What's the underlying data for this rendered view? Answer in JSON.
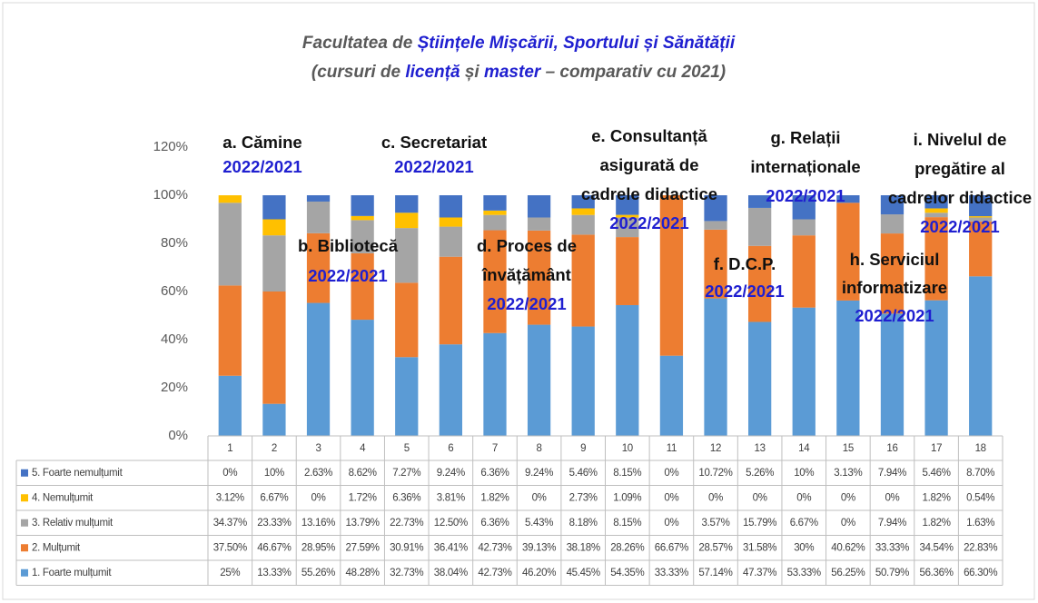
{
  "chart_data": {
    "type": "stacked_bar",
    "title_lines": [
      [
        {
          "text": "Facultatea de ",
          "color": "#595959"
        },
        {
          "text": "Științele Mișcării, Sportului și Sănătății",
          "color": "#1f1fd0"
        }
      ],
      [
        {
          "text": "(cursuri de ",
          "color": "#595959"
        },
        {
          "text": "licență",
          "color": "#1f1fd0"
        },
        {
          "text": " și ",
          "color": "#595959"
        },
        {
          "text": "master",
          "color": "#1f1fd0"
        },
        {
          "text": " – comparativ cu 2021)",
          "color": "#595959"
        }
      ]
    ],
    "categories": [
      "1",
      "2",
      "3",
      "4",
      "5",
      "6",
      "7",
      "8",
      "9",
      "10",
      "11",
      "12",
      "13",
      "14",
      "15",
      "16",
      "17",
      "18"
    ],
    "ylim": [
      0,
      120
    ],
    "yticks": [
      {
        "value": 0,
        "label": "0%"
      },
      {
        "value": 20,
        "label": "20%"
      },
      {
        "value": 40,
        "label": "40%"
      },
      {
        "value": 60,
        "label": "60%"
      },
      {
        "value": 80,
        "label": "80%"
      },
      {
        "value": 100,
        "label": "100%"
      },
      {
        "value": 120,
        "label": "120%"
      }
    ],
    "grid": false,
    "series": [
      {
        "name": "1. Foarte mulțumit",
        "color": "#5b9bd5",
        "values": [
          25,
          13.33,
          55.26,
          48.28,
          32.73,
          38.04,
          42.73,
          46.2,
          45.45,
          54.35,
          33.33,
          57.14,
          47.37,
          53.33,
          56.25,
          50.79,
          56.36,
          66.3
        ],
        "value_labels": [
          "25%",
          "13.33%",
          "55.26%",
          "48.28%",
          "32.73%",
          "38.04%",
          "42.73%",
          "46.20%",
          "45.45%",
          "54.35%",
          "33.33%",
          "57.14%",
          "47.37%",
          "53.33%",
          "56.25%",
          "50.79%",
          "56.36%",
          "66.30%"
        ]
      },
      {
        "name": "2. Mulțumit",
        "color": "#ed7d31",
        "values": [
          37.5,
          46.67,
          28.95,
          27.59,
          30.91,
          36.41,
          42.73,
          39.13,
          38.18,
          28.26,
          66.67,
          28.57,
          31.58,
          30,
          40.62,
          33.33,
          34.54,
          22.83
        ],
        "value_labels": [
          "37.50%",
          "46.67%",
          "28.95%",
          "27.59%",
          "30.91%",
          "36.41%",
          "42.73%",
          "39.13%",
          "38.18%",
          "28.26%",
          "66.67%",
          "28.57%",
          "31.58%",
          "30%",
          "40.62%",
          "33.33%",
          "34.54%",
          "22.83%"
        ]
      },
      {
        "name": "3. Relativ mulțumit",
        "color": "#a5a5a5",
        "values": [
          34.37,
          23.33,
          13.16,
          13.79,
          22.73,
          12.5,
          6.36,
          5.43,
          8.18,
          8.15,
          0,
          3.57,
          15.79,
          6.67,
          0,
          7.94,
          1.82,
          1.63
        ],
        "value_labels": [
          "34.37%",
          "23.33%",
          "13.16%",
          "13.79%",
          "22.73%",
          "12.50%",
          "6.36%",
          "5.43%",
          "8.18%",
          "8.15%",
          "0%",
          "3.57%",
          "15.79%",
          "6.67%",
          "0%",
          "7.94%",
          "1.82%",
          "1.63%"
        ]
      },
      {
        "name": "4. Nemulțumit",
        "color": "#ffc000",
        "values": [
          3.12,
          6.67,
          0,
          1.72,
          6.36,
          3.81,
          1.82,
          0,
          2.73,
          1.09,
          0,
          0,
          0,
          0,
          0,
          0,
          1.82,
          0.54
        ],
        "value_labels": [
          "3.12%",
          "6.67%",
          "0%",
          "1.72%",
          "6.36%",
          "3.81%",
          "1.82%",
          "0%",
          "2.73%",
          "1.09%",
          "0%",
          "0%",
          "0%",
          "0%",
          "0%",
          "0%",
          "1.82%",
          "0.54%"
        ]
      },
      {
        "name": "5. Foarte nemulțumit",
        "color": "#4472c4",
        "values": [
          0,
          10,
          2.63,
          8.62,
          7.27,
          9.24,
          6.36,
          9.24,
          5.46,
          8.15,
          0,
          10.72,
          5.26,
          10,
          3.13,
          7.94,
          5.46,
          8.7
        ],
        "value_labels": [
          "0%",
          "10%",
          "2.63%",
          "8.62%",
          "7.27%",
          "9.24%",
          "6.36%",
          "9.24%",
          "5.46%",
          "8.15%",
          "0%",
          "10.72%",
          "5.26%",
          "10%",
          "3.13%",
          "7.94%",
          "5.46%",
          "8.70%"
        ]
      }
    ],
    "annotations": [
      {
        "lines": [
          "a. Cămine"
        ],
        "period": "2022/2021"
      },
      {
        "lines": [
          "b. Bibliotecă"
        ],
        "period": "2022/2021"
      },
      {
        "lines": [
          "c. Secretariat"
        ],
        "period": "2022/2021"
      },
      {
        "lines": [
          "d. Proces de",
          "învățământ"
        ],
        "period": "2022/2021"
      },
      {
        "lines": [
          "e. Consultanță",
          "asigurată de",
          "cadrele didactice"
        ],
        "period": "2022/2021"
      },
      {
        "lines": [
          "f. D.C.P."
        ],
        "period": "2022/2021"
      },
      {
        "lines": [
          "g. Relații",
          "internaționale"
        ],
        "period": "2022/2021"
      },
      {
        "lines": [
          "h. Serviciul",
          "informatizare"
        ],
        "period": "2022/2021"
      },
      {
        "lines": [
          "i. Nivelul de",
          "pregătire al",
          "cadrelor didactice"
        ],
        "period": "2022/2021"
      }
    ]
  }
}
